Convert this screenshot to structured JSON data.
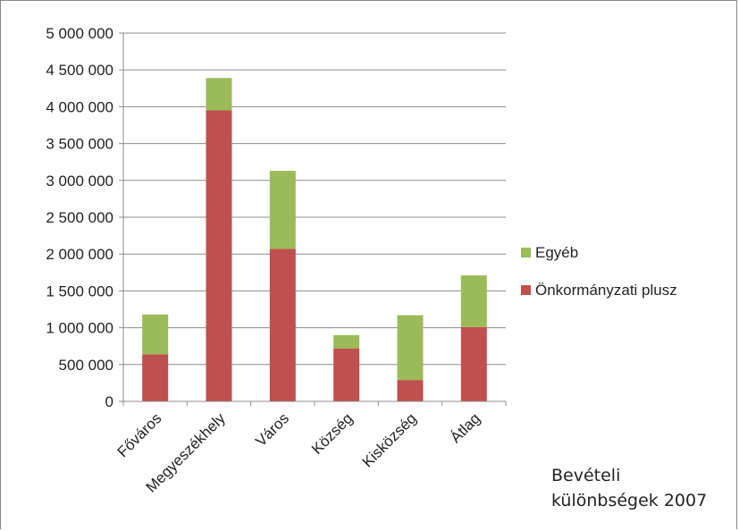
{
  "chart_data": {
    "type": "bar",
    "stacked": true,
    "categories": [
      "Főváros",
      "Megyeszékhely",
      "Város",
      "Község",
      "Kisközség",
      "Átlag"
    ],
    "series": [
      {
        "name": "Önkormányzati plusz",
        "color": "#c0504d",
        "values": [
          640000,
          3950000,
          2070000,
          720000,
          290000,
          1010000
        ]
      },
      {
        "name": "Egyéb",
        "color": "#9bbb59",
        "values": [
          540000,
          440000,
          1060000,
          180000,
          880000,
          700000
        ]
      }
    ],
    "y_ticks": [
      "0",
      "500 000",
      "1 000 000",
      "1 500 000",
      "2 000 000",
      "2 500 000",
      "3 000 000",
      "3 500 000",
      "4 000 000",
      "4 500 000",
      "5 000 000"
    ],
    "ylim": [
      0,
      5000000
    ],
    "grid": true,
    "legend_position": "right",
    "legend": [
      "Egyéb",
      "Önkormányzati plusz"
    ]
  },
  "note": {
    "line1": "Bevételi",
    "line2": "különbségek 2007"
  }
}
